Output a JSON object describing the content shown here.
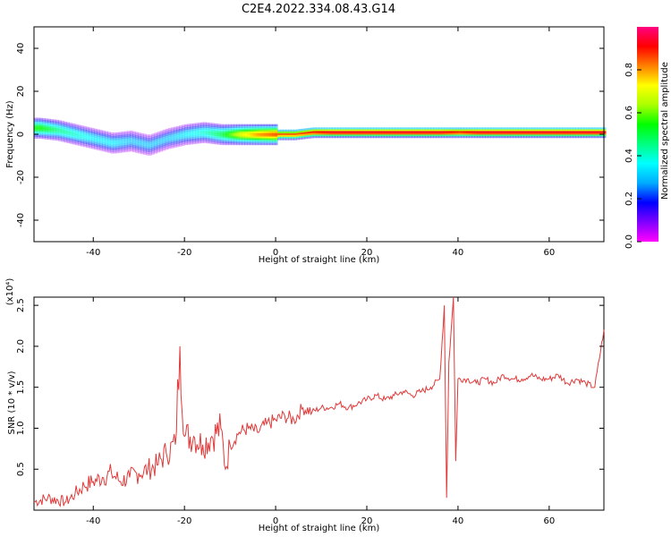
{
  "title": "C2E4.2022.334.08.43.G14",
  "chart_data": [
    {
      "type": "heatmap",
      "xlabel": "Height of straight line (km)",
      "ylabel": "Frequency (Hz)",
      "xlim": [
        -53,
        72
      ],
      "ylim": [
        -50,
        50
      ],
      "xticks": [
        -40,
        -20,
        0,
        20,
        40,
        60
      ],
      "yticks": [
        -40,
        -20,
        0,
        20,
        40
      ],
      "colorbar": {
        "label": "Normalized spectral amplitude",
        "range": [
          0,
          1
        ],
        "ticks": [
          "0.0",
          "0.2",
          "0.4",
          "0.6",
          "0.8"
        ],
        "colors": [
          "#ff00ff",
          "#8000ff",
          "#0000ff",
          "#00aaff",
          "#00ffff",
          "#00ff80",
          "#00ff00",
          "#aaff00",
          "#ffff00",
          "#ff8000",
          "#ff0000",
          "#ff0080"
        ]
      },
      "ridge": {
        "x": [
          -52,
          -48,
          -44,
          -40,
          -36,
          -32,
          -28,
          -24,
          -20,
          -16,
          -12,
          -8,
          -4,
          0,
          4,
          8,
          12,
          16,
          20,
          24,
          28,
          32,
          36,
          40,
          44,
          48,
          52,
          56,
          60,
          64,
          68,
          72
        ],
        "frequency": [
          3,
          2,
          0,
          -2,
          -4,
          -3,
          -5,
          -2,
          0,
          1,
          0,
          0,
          0,
          0,
          0,
          1,
          1,
          1,
          1,
          1,
          1,
          1,
          1,
          1,
          1,
          1,
          1,
          1,
          1,
          1,
          1,
          1
        ],
        "amplitude": [
          0.55,
          0.45,
          0.4,
          0.35,
          0.35,
          0.3,
          0.3,
          0.3,
          0.35,
          0.4,
          0.5,
          0.7,
          0.8,
          0.85,
          0.85,
          0.9,
          0.95,
          0.95,
          0.95,
          0.95,
          0.95,
          0.95,
          0.95,
          0.9,
          0.95,
          0.95,
          0.95,
          0.95,
          0.95,
          0.95,
          0.95,
          0.95
        ]
      }
    },
    {
      "type": "line",
      "xlabel": "Height of straight line (km)",
      "ylabel": "SNR (10 * v/v)",
      "yscale_label": "(x10⁴)",
      "xlim": [
        -53,
        72
      ],
      "ylim": [
        0,
        2.6
      ],
      "xticks": [
        -40,
        -20,
        0,
        20,
        40,
        60
      ],
      "yticks": [
        0.5,
        1.0,
        1.5,
        2.0,
        2.5
      ],
      "color": "#e03a3a",
      "series": [
        {
          "x": [
            -53,
            -50,
            -46,
            -44,
            -42,
            -40,
            -38,
            -36,
            -34,
            -32,
            -30,
            -28,
            -26,
            -24,
            -22,
            -21,
            -20,
            -18,
            -16,
            -14,
            -12,
            -11,
            -10,
            -8,
            -6,
            -4,
            -2,
            0,
            2,
            4,
            6,
            8,
            10,
            12,
            14,
            16,
            18,
            20,
            22,
            24,
            26,
            28,
            30,
            32,
            34,
            36,
            37,
            37.5,
            38,
            39,
            39.5,
            40,
            42,
            44,
            46,
            48,
            50,
            52,
            54,
            56,
            58,
            60,
            62,
            64,
            66,
            68,
            70,
            72
          ],
          "values": [
            0.1,
            0.15,
            0.1,
            0.2,
            0.3,
            0.35,
            0.4,
            0.45,
            0.35,
            0.4,
            0.45,
            0.5,
            0.55,
            0.7,
            0.8,
            2.0,
            0.9,
            0.9,
            0.8,
            0.9,
            1.0,
            0.5,
            0.8,
            0.95,
            1.0,
            0.95,
            1.05,
            1.1,
            1.15,
            1.1,
            1.25,
            1.2,
            1.25,
            1.25,
            1.3,
            1.25,
            1.3,
            1.35,
            1.4,
            1.35,
            1.4,
            1.45,
            1.4,
            1.45,
            1.5,
            1.6,
            2.5,
            0.15,
            1.8,
            2.6,
            0.6,
            1.6,
            1.6,
            1.55,
            1.6,
            1.55,
            1.65,
            1.6,
            1.6,
            1.65,
            1.6,
            1.6,
            1.65,
            1.55,
            1.6,
            1.55,
            1.5,
            2.2
          ]
        }
      ]
    }
  ]
}
